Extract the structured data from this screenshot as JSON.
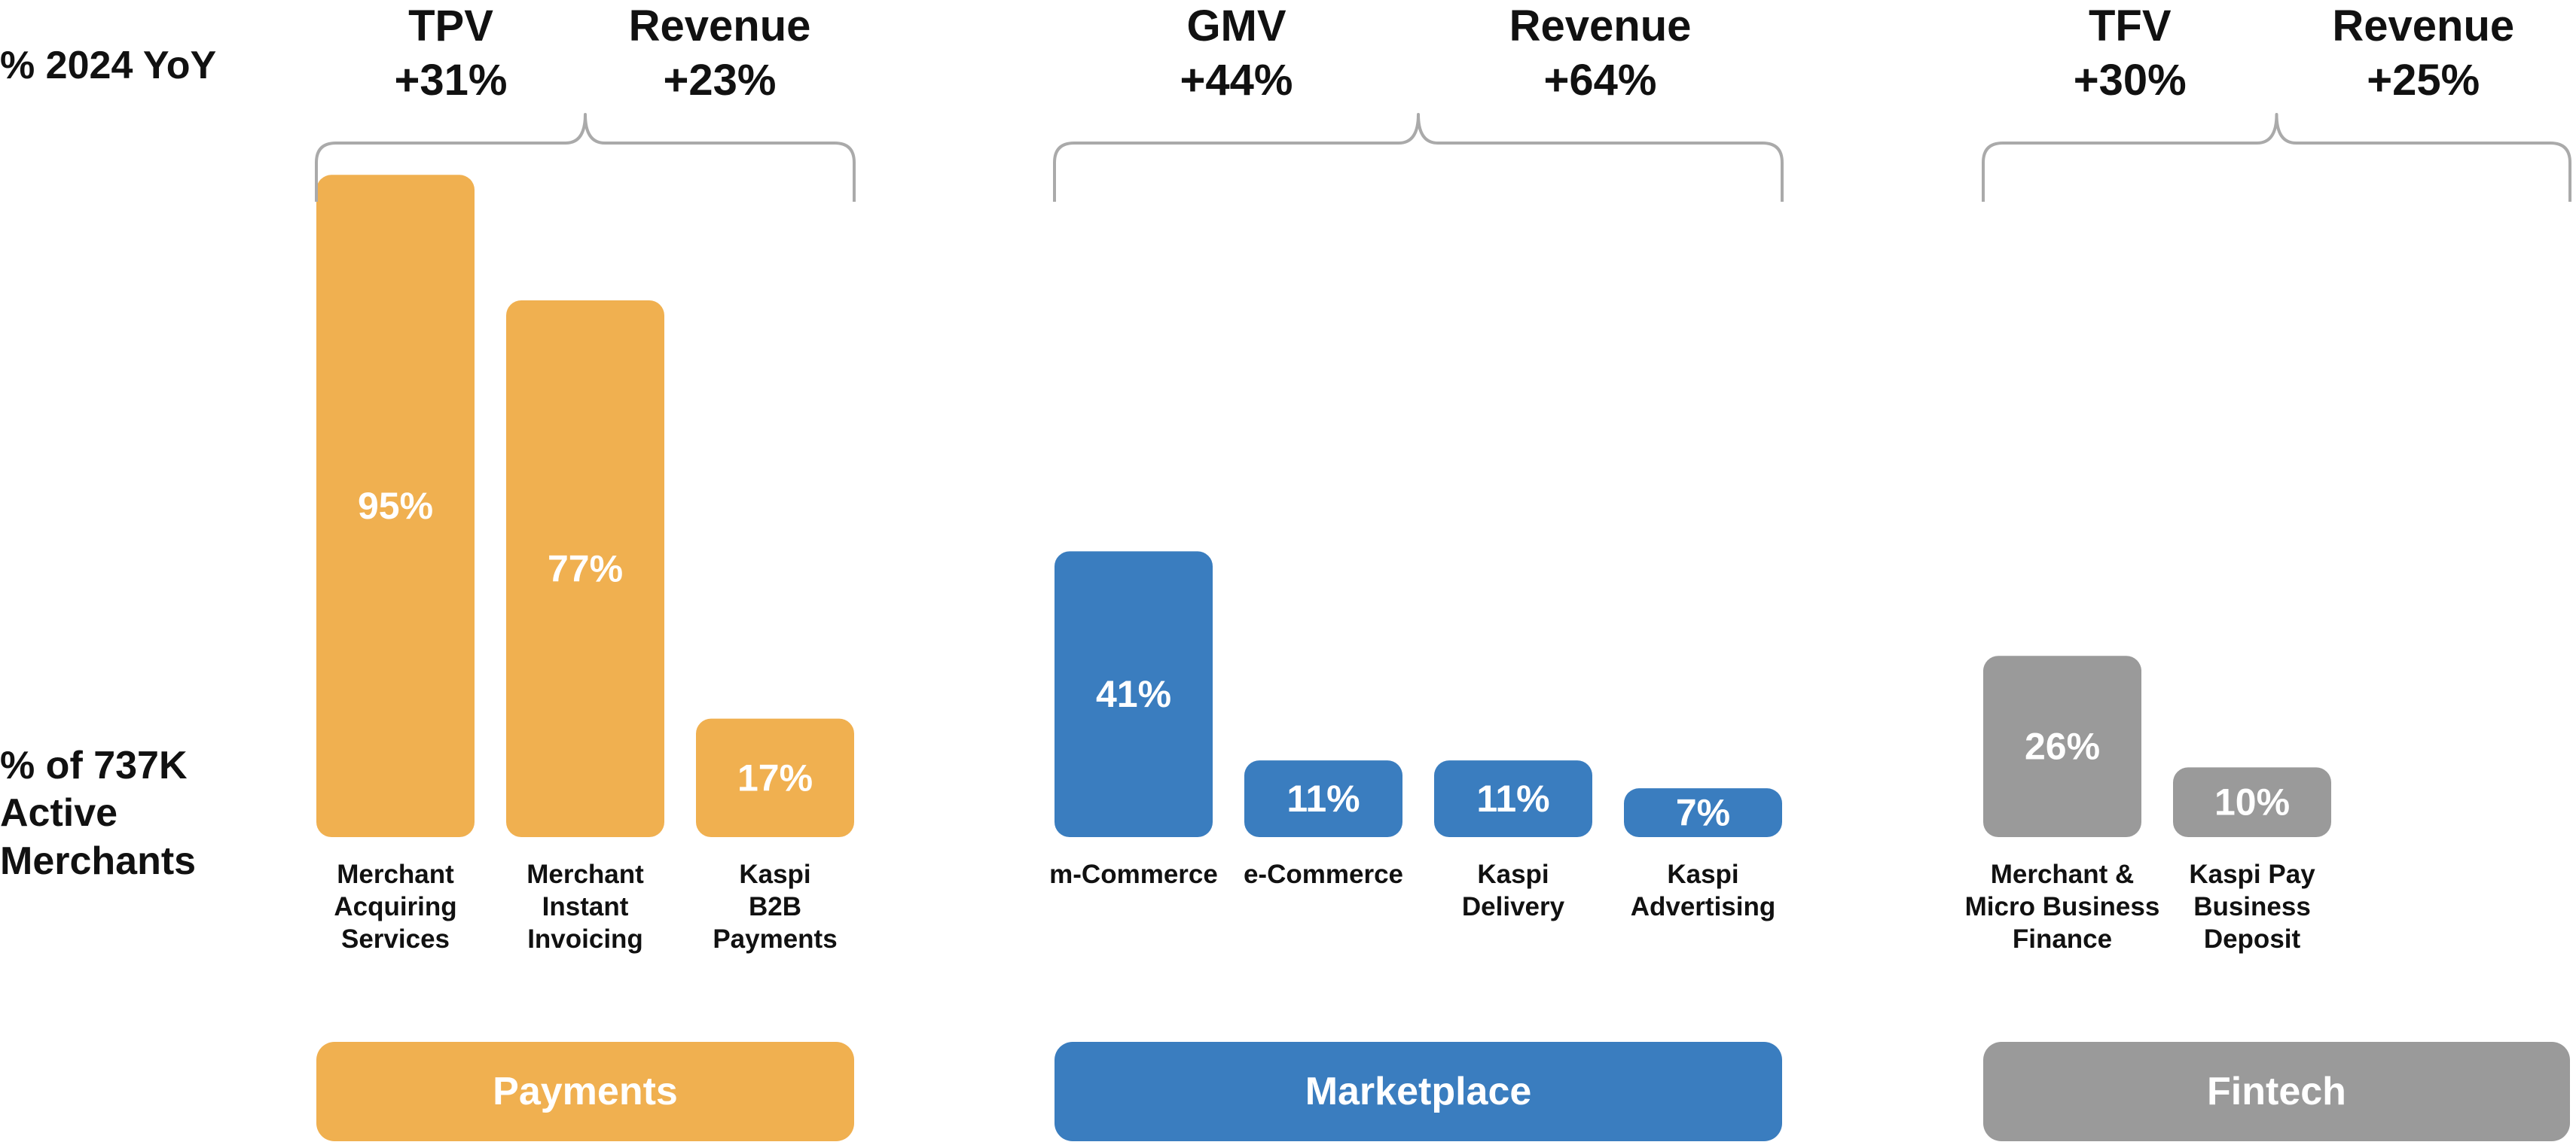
{
  "row_labels": {
    "yoy": "% 2024 YoY",
    "merchants": "% of 737K\nActive\nMerchants"
  },
  "colors": {
    "payments": "#F0B050",
    "marketplace": "#3A7DBF",
    "fintech": "#9A9A9A",
    "bracket": "#AAAAAA",
    "text": "#111111",
    "bar_label": "#FFFFFF"
  },
  "chart_data": {
    "type": "bar",
    "title": "",
    "ylabel": "% of 737K Active Merchants",
    "unit": "%",
    "ylim": [
      0,
      100
    ],
    "groups": [
      {
        "name": "Payments",
        "color_key": "payments",
        "metrics": [
          {
            "label": "TPV",
            "value": "+31%"
          },
          {
            "label": "Revenue",
            "value": "+23%"
          }
        ],
        "bars": [
          {
            "category": "Merchant\nAcquiring\nServices",
            "value": 95
          },
          {
            "category": "Merchant\nInstant\nInvoicing",
            "value": 77
          },
          {
            "category": "Kaspi\nB2B\nPayments",
            "value": 17
          }
        ]
      },
      {
        "name": "Marketplace",
        "color_key": "marketplace",
        "metrics": [
          {
            "label": "GMV",
            "value": "+44%"
          },
          {
            "label": "Revenue",
            "value": "+64%"
          }
        ],
        "bars": [
          {
            "category": "m-Commerce",
            "value": 41
          },
          {
            "category": "e-Commerce",
            "value": 11
          },
          {
            "category": "Kaspi\nDelivery",
            "value": 11
          },
          {
            "category": "Kaspi\nAdvertising",
            "value": 7
          }
        ]
      },
      {
        "name": "Fintech",
        "color_key": "fintech",
        "metrics": [
          {
            "label": "TFV",
            "value": "+30%"
          },
          {
            "label": "Revenue",
            "value": "+25%"
          }
        ],
        "bars": [
          {
            "category": "Merchant &\nMicro Business\nFinance",
            "value": 26
          },
          {
            "category": "Kaspi Pay\nBusiness\nDeposit",
            "value": 10
          }
        ]
      }
    ]
  }
}
